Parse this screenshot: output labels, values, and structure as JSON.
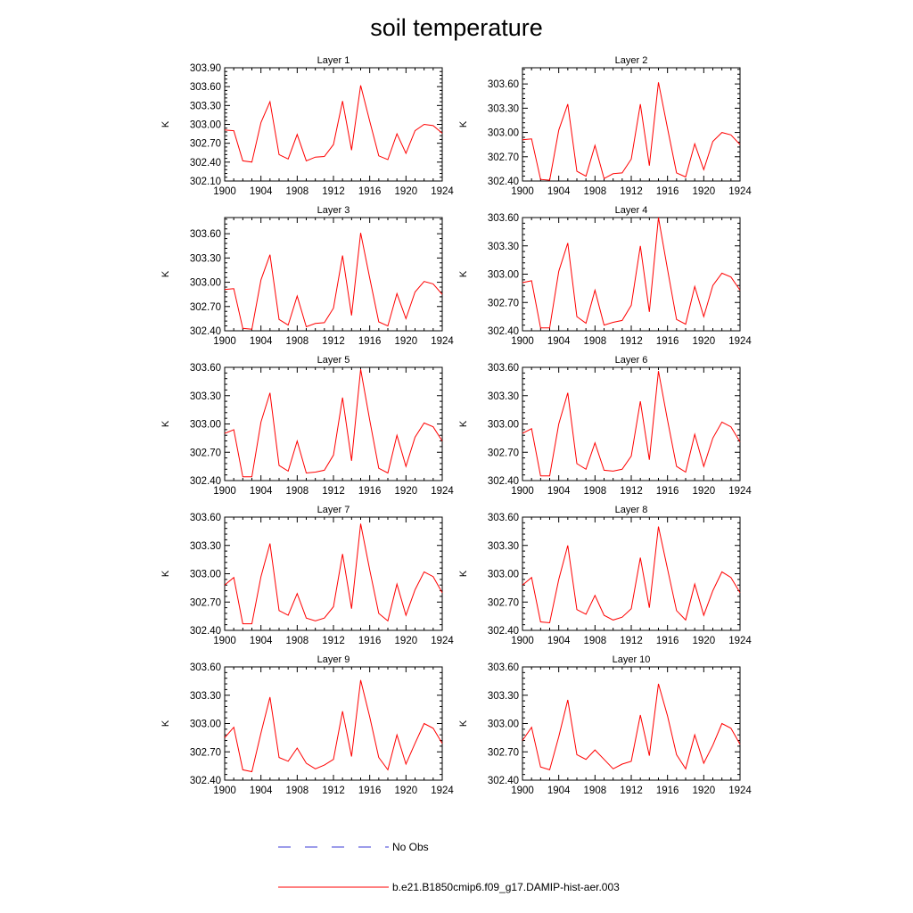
{
  "chart_data": {
    "type": "line",
    "title": "soil temperature",
    "grid": false,
    "legend_placement": "bottom",
    "legend": [
      {
        "name": "No Obs",
        "color": "#3a3ad6",
        "style": "dashed"
      },
      {
        "name": "b.e21.B1850cmip6.f09_g17.DAMIP-hist-aer.003",
        "color": "#ff0000",
        "style": "solid"
      }
    ],
    "series_color": "#ff0000",
    "x": [
      1900,
      1901,
      1902,
      1903,
      1904,
      1905,
      1906,
      1907,
      1908,
      1909,
      1910,
      1911,
      1912,
      1913,
      1914,
      1915,
      1916,
      1917,
      1918,
      1919,
      1920,
      1921,
      1922,
      1923,
      1924
    ],
    "xticks": [
      "1900",
      "1904",
      "1908",
      "1912",
      "1916",
      "1920",
      "1924"
    ],
    "xlim": [
      1900,
      1924
    ],
    "panels": [
      {
        "title": "Layer 1",
        "ylabel": "K",
        "ylim": [
          302.1,
          303.9
        ],
        "yticks": [
          "302.10",
          "302.40",
          "302.70",
          "303.00",
          "303.30",
          "303.60",
          "303.90"
        ],
        "values": [
          302.91,
          302.9,
          302.42,
          302.4,
          303.03,
          303.36,
          302.52,
          302.45,
          302.84,
          302.42,
          302.48,
          302.49,
          302.68,
          303.37,
          302.59,
          303.62,
          303.05,
          302.5,
          302.44,
          302.85,
          302.54,
          302.9,
          303.0,
          302.98,
          302.86
        ]
      },
      {
        "title": "Layer 2",
        "ylabel": "K",
        "ylim": [
          302.4,
          303.8
        ],
        "yticks": [
          "302.40",
          "302.70",
          "303.00",
          "303.30",
          "303.60"
        ],
        "values": [
          302.91,
          302.92,
          302.42,
          302.41,
          303.03,
          303.35,
          302.52,
          302.46,
          302.84,
          302.43,
          302.49,
          302.5,
          302.67,
          303.35,
          302.59,
          303.62,
          303.05,
          302.5,
          302.45,
          302.86,
          302.54,
          302.89,
          303.0,
          302.97,
          302.85
        ]
      },
      {
        "title": "Layer 3",
        "ylabel": "K",
        "ylim": [
          302.4,
          303.8
        ],
        "yticks": [
          "302.40",
          "302.70",
          "303.00",
          "303.30",
          "303.60"
        ],
        "values": [
          302.91,
          302.92,
          302.43,
          302.42,
          303.03,
          303.34,
          302.54,
          302.47,
          302.83,
          302.45,
          302.49,
          302.5,
          302.68,
          303.33,
          302.59,
          303.61,
          303.05,
          302.51,
          302.46,
          302.86,
          302.55,
          302.88,
          303.01,
          302.98,
          302.85
        ]
      },
      {
        "title": "Layer 4",
        "ylabel": "K",
        "ylim": [
          302.4,
          303.6
        ],
        "yticks": [
          "302.40",
          "302.70",
          "303.00",
          "303.30",
          "303.60"
        ],
        "values": [
          302.91,
          302.93,
          302.43,
          302.43,
          303.03,
          303.33,
          302.55,
          302.48,
          302.83,
          302.46,
          302.49,
          302.51,
          302.67,
          303.3,
          302.6,
          303.6,
          303.05,
          302.52,
          302.47,
          302.87,
          302.55,
          302.88,
          303.01,
          302.97,
          302.83
        ]
      },
      {
        "title": "Layer 5",
        "ylabel": "K",
        "ylim": [
          302.4,
          303.6
        ],
        "yticks": [
          "302.40",
          "302.70",
          "303.00",
          "303.30",
          "303.60"
        ],
        "values": [
          302.9,
          302.94,
          302.44,
          302.44,
          303.02,
          303.33,
          302.56,
          302.5,
          302.82,
          302.48,
          302.49,
          302.51,
          302.67,
          303.28,
          302.61,
          303.58,
          303.04,
          302.53,
          302.48,
          302.88,
          302.55,
          302.86,
          303.01,
          302.97,
          302.82
        ]
      },
      {
        "title": "Layer 6",
        "ylabel": "K",
        "ylim": [
          302.4,
          303.6
        ],
        "yticks": [
          "302.40",
          "302.70",
          "303.00",
          "303.30",
          "303.60"
        ],
        "values": [
          302.9,
          302.95,
          302.45,
          302.45,
          303.0,
          303.33,
          302.58,
          302.52,
          302.8,
          302.51,
          302.5,
          302.52,
          302.66,
          303.24,
          302.62,
          303.56,
          303.04,
          302.55,
          302.49,
          302.89,
          302.55,
          302.85,
          303.02,
          302.97,
          302.81
        ]
      },
      {
        "title": "Layer 7",
        "ylabel": "K",
        "ylim": [
          302.4,
          303.6
        ],
        "yticks": [
          "302.40",
          "302.70",
          "303.00",
          "303.30",
          "303.60"
        ],
        "values": [
          302.88,
          302.96,
          302.47,
          302.47,
          302.97,
          303.32,
          302.61,
          302.56,
          302.79,
          302.53,
          302.5,
          302.53,
          302.65,
          303.21,
          302.63,
          303.53,
          303.04,
          302.58,
          302.5,
          302.89,
          302.56,
          302.83,
          303.02,
          302.97,
          302.8
        ]
      },
      {
        "title": "Layer 8",
        "ylabel": "K",
        "ylim": [
          302.4,
          303.6
        ],
        "yticks": [
          "302.40",
          "302.70",
          "303.00",
          "303.30",
          "303.60"
        ],
        "values": [
          302.88,
          302.96,
          302.49,
          302.48,
          302.94,
          303.3,
          302.62,
          302.57,
          302.77,
          302.56,
          302.51,
          302.54,
          302.63,
          303.17,
          302.64,
          303.5,
          303.05,
          302.61,
          302.51,
          302.89,
          302.56,
          302.82,
          303.02,
          302.96,
          302.8
        ]
      },
      {
        "title": "Layer 9",
        "ylabel": "K",
        "ylim": [
          302.4,
          303.6
        ],
        "yticks": [
          "302.40",
          "302.70",
          "303.00",
          "303.30",
          "303.60"
        ],
        "values": [
          302.85,
          302.96,
          302.51,
          302.49,
          302.9,
          303.28,
          302.64,
          302.6,
          302.74,
          302.58,
          302.52,
          302.56,
          302.62,
          303.13,
          302.65,
          303.46,
          303.07,
          302.64,
          302.51,
          302.88,
          302.57,
          302.79,
          303.0,
          302.95,
          302.79
        ]
      },
      {
        "title": "Layer 10",
        "ylabel": "K",
        "ylim": [
          302.4,
          303.6
        ],
        "yticks": [
          "302.40",
          "302.70",
          "303.00",
          "303.30",
          "303.60"
        ],
        "values": [
          302.82,
          302.96,
          302.54,
          302.51,
          302.86,
          303.25,
          302.67,
          302.62,
          302.72,
          302.62,
          302.52,
          302.57,
          302.6,
          303.09,
          302.66,
          303.42,
          303.08,
          302.67,
          302.52,
          302.88,
          302.58,
          302.77,
          303.0,
          302.95,
          302.78
        ]
      }
    ]
  }
}
